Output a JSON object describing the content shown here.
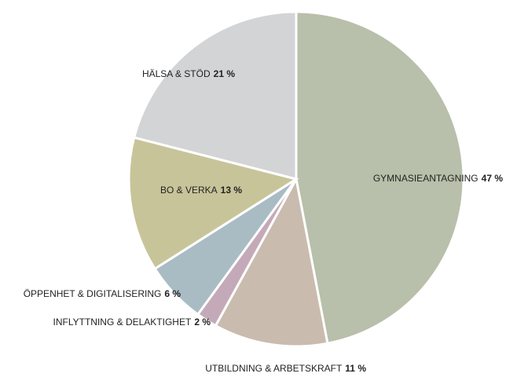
{
  "chart_data": {
    "type": "pie",
    "categories": [
      "GYMNASIEANTAGNING",
      "UTBILDNING & ARBETSKRAFT",
      "INFLYTTNING & DELAKTIGHET",
      "ÖPPENHET & DIGITALISERING",
      "BO & VERKA",
      "HÄLSA & STÖD"
    ],
    "values": [
      47,
      11,
      2,
      6,
      13,
      21
    ],
    "value_labels": [
      "47 %",
      "11 %",
      "2 %",
      "6 %",
      "13 %",
      "21 %"
    ],
    "colors": [
      "#b8bfaa",
      "#c9bcae",
      "#c4aab8",
      "#a9bcc4",
      "#c8c49a",
      "#d3d4d6"
    ]
  }
}
